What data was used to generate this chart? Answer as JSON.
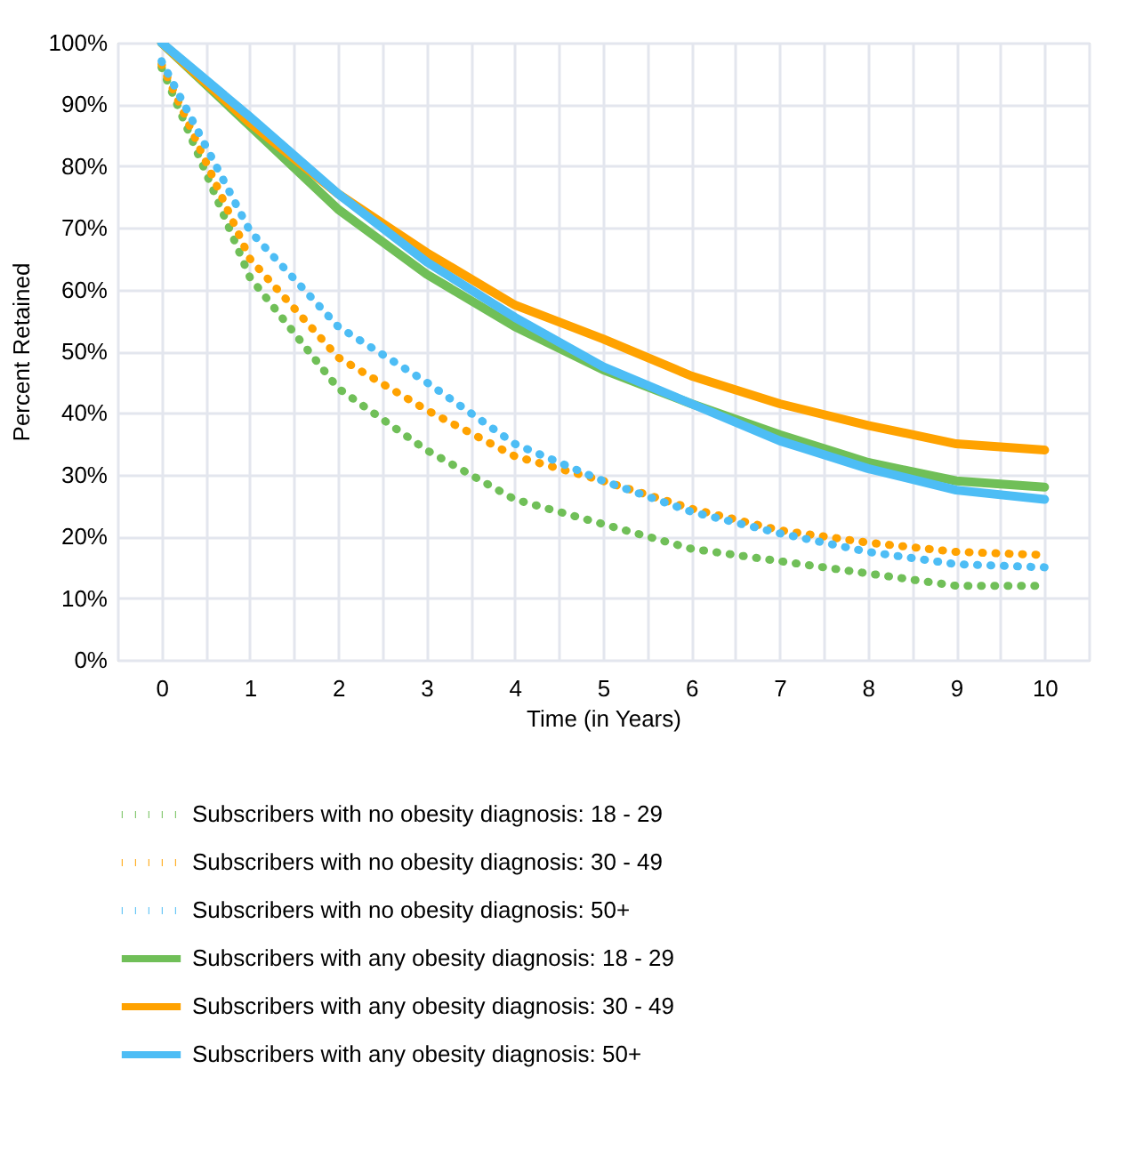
{
  "chart_data": {
    "type": "line",
    "xlabel": "Time (in Years)",
    "ylabel": "Percent Retained",
    "x": [
      0,
      1,
      2,
      3,
      4,
      5,
      6,
      7,
      8,
      9,
      10
    ],
    "series": [
      {
        "name": "Subscribers with no obesity diagnosis: 18 - 29",
        "color": "#70bf58",
        "line_style": "dotted",
        "values": [
          96,
          62,
          44,
          34,
          26,
          22,
          18,
          16,
          14,
          12,
          12
        ]
      },
      {
        "name": "Subscribers with no obesity diagnosis: 30 - 49",
        "color": "#ffa200",
        "line_style": "dotted",
        "values": [
          96.5,
          65,
          49,
          40.5,
          33,
          29,
          24.5,
          21,
          19,
          17.5,
          17
        ]
      },
      {
        "name": "Subscribers with no obesity diagnosis: 50+",
        "color": "#4dbdf5",
        "line_style": "dotted",
        "values": [
          97,
          69.5,
          54,
          45,
          35,
          29,
          24,
          20.5,
          17.5,
          15.5,
          15
        ]
      },
      {
        "name": "Subscribers with any obesity diagnosis: 18 - 29",
        "color": "#70bf58",
        "line_style": "solid",
        "values": [
          100,
          86.5,
          73,
          62.5,
          54,
          47,
          41.5,
          36.5,
          32,
          29,
          28
        ]
      },
      {
        "name": "Subscribers with any obesity diagnosis: 30 - 49",
        "color": "#ffa200",
        "line_style": "solid",
        "values": [
          100,
          87,
          75.5,
          66,
          57.5,
          52,
          46,
          41.5,
          38,
          35,
          34
        ]
      },
      {
        "name": "Subscribers with any obesity diagnosis: 50+",
        "color": "#4dbdf5",
        "line_style": "solid",
        "values": [
          100,
          88,
          75.5,
          64.5,
          55.5,
          47.5,
          41.5,
          35.5,
          31,
          27.5,
          26
        ]
      }
    ],
    "xlim": [
      -0.5,
      10.5
    ],
    "xticks": [
      {
        "value": -0.5,
        "label": null
      },
      0,
      {
        "value": 0.5,
        "label": null
      },
      1,
      {
        "value": 1.5,
        "label": null
      },
      2,
      {
        "value": 2.5,
        "label": null
      },
      3,
      {
        "value": 3.5,
        "label": null
      },
      4,
      {
        "value": 4.5,
        "label": null
      },
      5,
      {
        "value": 5.5,
        "label": null
      },
      6,
      {
        "value": 6.5,
        "label": null
      },
      7,
      {
        "value": 7.5,
        "label": null
      },
      8,
      {
        "value": 8.5,
        "label": null
      },
      9,
      {
        "value": 9.5,
        "label": null
      },
      10,
      {
        "value": 10.5,
        "label": null
      }
    ],
    "ylim": [
      0,
      100
    ],
    "yticks": [
      {
        "value": 0,
        "label": "0%"
      },
      {
        "value": 10,
        "label": "10%"
      },
      {
        "value": 20,
        "label": "20%"
      },
      {
        "value": 30,
        "label": "30%"
      },
      {
        "value": 40,
        "label": "40%"
      },
      {
        "value": 50,
        "label": "50%"
      },
      {
        "value": 60,
        "label": "60%"
      },
      {
        "value": 70,
        "label": "70%"
      },
      {
        "value": 80,
        "label": "80%"
      },
      {
        "value": 90,
        "label": "90%"
      },
      {
        "value": 100,
        "label": "100%"
      }
    ],
    "grid": true,
    "legend": "bottom",
    "marker": "none"
  }
}
